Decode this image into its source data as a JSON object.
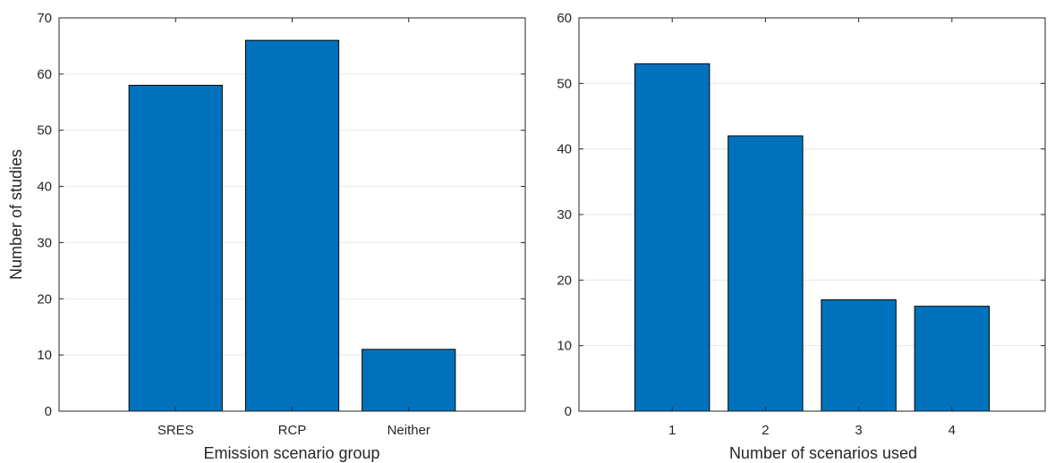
{
  "colors": {
    "bar_fill": "#0072BD",
    "bar_edge": "#000000",
    "axis": "#262626",
    "grid": "#e6e6e6",
    "background": "#ffffff"
  },
  "chart_data": [
    {
      "type": "bar",
      "categories": [
        "SRES",
        "RCP",
        "Neither"
      ],
      "values": [
        58,
        66,
        11
      ],
      "title": "",
      "xlabel": "Emission scenario group",
      "ylabel": "Number of studies",
      "xlim": [
        0,
        4
      ],
      "ylim": [
        0,
        70
      ],
      "yticks": [
        0,
        10,
        20,
        30,
        40,
        50,
        60,
        70
      ],
      "grid": "horizontal",
      "box": true
    },
    {
      "type": "bar",
      "categories": [
        "1",
        "2",
        "3",
        "4"
      ],
      "values": [
        53,
        42,
        17,
        16
      ],
      "title": "",
      "xlabel": "Number of scenarios used",
      "ylabel": "",
      "xlim": [
        0,
        5
      ],
      "ylim": [
        0,
        60
      ],
      "yticks": [
        0,
        10,
        20,
        30,
        40,
        50,
        60
      ],
      "grid": "horizontal",
      "box": true
    }
  ]
}
